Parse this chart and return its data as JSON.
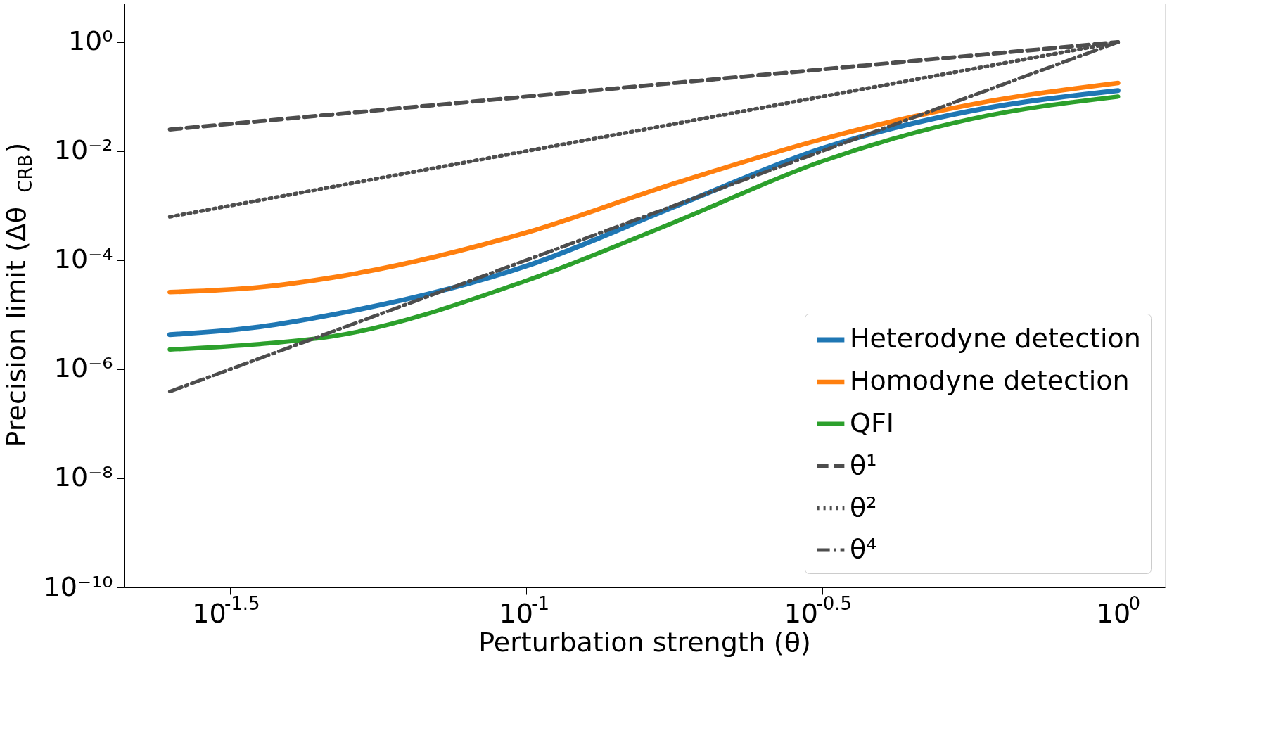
{
  "chart_data": {
    "type": "line",
    "xlabel": "Perturbation strength (θ)",
    "ylabel": "Precision limit (Δθ$_{CRB}$)",
    "log": "xy",
    "grid": false,
    "legend": "bottom right",
    "xlim": [
      0.0209,
      1.2
    ],
    "ylim": [
      1e-10,
      5.1
    ],
    "xticks": [
      {
        "value": 0.0316228,
        "label": "10$^{-1.5}$"
      },
      {
        "value": 0.1,
        "label": "10$^{-1}$"
      },
      {
        "value": 0.316228,
        "label": "10$^{-0.5}$"
      },
      {
        "value": 1,
        "label": "10$^{0}$"
      }
    ],
    "yticks": [
      {
        "value": 1e-10,
        "label": "10⁻¹⁰"
      },
      {
        "value": 1e-08,
        "label": "10⁻⁸"
      },
      {
        "value": 1e-06,
        "label": "10⁻⁶"
      },
      {
        "value": 0.0001,
        "label": "10⁻⁴"
      },
      {
        "value": 0.01,
        "label": "10⁻²"
      },
      {
        "value": 1,
        "label": "10⁰"
      }
    ],
    "x": [
      0.025,
      0.0355,
      0.047,
      0.1,
      0.179,
      0.316,
      0.566,
      1.0
    ],
    "series": [
      {
        "name": "Heterodyne detection",
        "color": "#1f77b4",
        "line_style": "solid",
        "values": [
          4.3e-06,
          6e-06,
          1e-05,
          7.8e-05,
          0.00098,
          0.0112,
          0.055,
          0.129
        ]
      },
      {
        "name": "Homodyne detection",
        "color": "#ff7f0e",
        "line_style": "solid",
        "values": [
          2.6e-05,
          3.2e-05,
          4.8e-05,
          0.00032,
          0.0026,
          0.0166,
          0.072,
          0.178
        ]
      },
      {
        "name": "QFI",
        "color": "#2ca02c",
        "line_style": "solid",
        "values": [
          2.3e-06,
          2.9e-06,
          4e-06,
          4.2e-05,
          0.00051,
          0.0065,
          0.039,
          0.1
        ]
      },
      {
        "name": "θ¹",
        "color": "#4d4d4d",
        "line_style": "dashed",
        "values": [
          0.025,
          0.0355,
          0.047,
          0.1,
          0.179,
          0.316,
          0.566,
          1.0
        ]
      },
      {
        "name": "θ²",
        "color": "#4d4d4d",
        "line_style": "dotted",
        "values": [
          0.000625,
          0.00126,
          0.00221,
          0.01,
          0.032,
          0.0999,
          0.32,
          1.0
        ]
      },
      {
        "name": "θ⁴",
        "color": "#4d4d4d",
        "line_style": "dashdot",
        "values": [
          3.9e-07,
          1.59e-06,
          4.88e-06,
          0.0001,
          0.00103,
          0.00997,
          0.103,
          1.0
        ]
      }
    ]
  }
}
